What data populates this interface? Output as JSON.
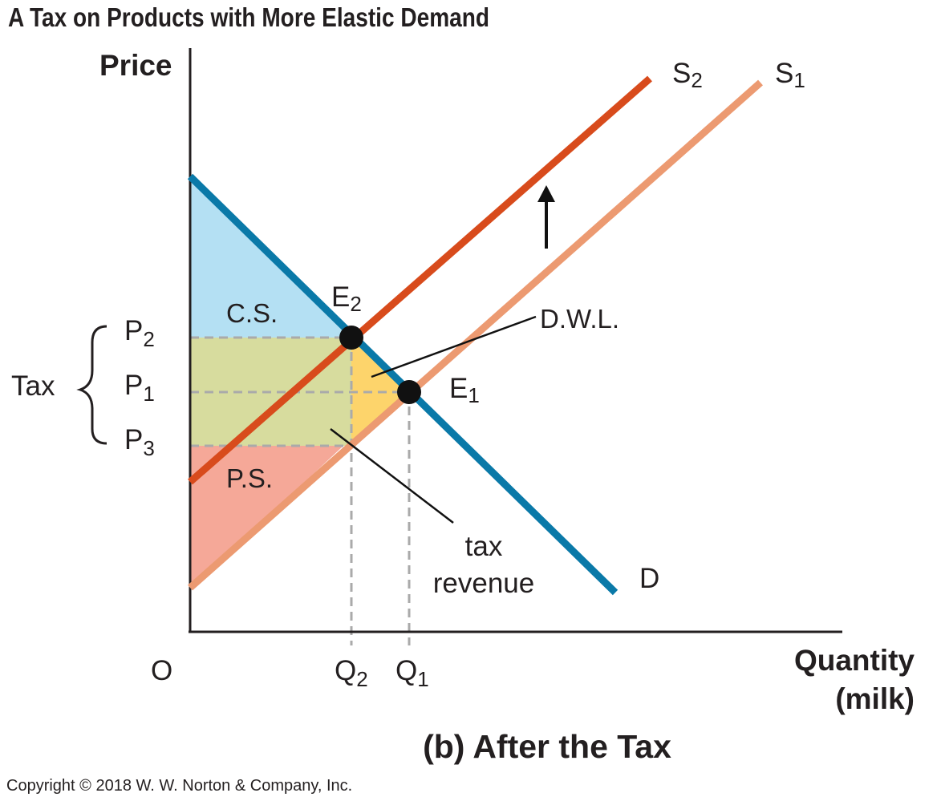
{
  "title": "A Tax on Products with More Elastic Demand",
  "axes": {
    "y_label": "Price",
    "x_label_line1": "Quantity",
    "x_label_line2": "(milk)",
    "origin": "O"
  },
  "curves": {
    "demand": {
      "label": "D",
      "color": "#0a79a8"
    },
    "supply_before": {
      "label_main": "S",
      "label_sub": "1",
      "color": "#ec9a71"
    },
    "supply_after": {
      "label_main": "S",
      "label_sub": "2",
      "color": "#d84b1c"
    }
  },
  "equilibria": {
    "e1": {
      "main": "E",
      "sub": "1"
    },
    "e2": {
      "main": "E",
      "sub": "2"
    }
  },
  "price_labels": [
    {
      "main": "P",
      "sub": "2"
    },
    {
      "main": "P",
      "sub": "1"
    },
    {
      "main": "P",
      "sub": "3"
    }
  ],
  "quantity_labels": [
    {
      "main": "Q",
      "sub": "2"
    },
    {
      "main": "Q",
      "sub": "1"
    }
  ],
  "tax_label": "Tax",
  "areas": {
    "consumer_surplus": {
      "label": "C.S.",
      "color": "#b4e0f3"
    },
    "producer_surplus": {
      "label": "P.S.",
      "color": "#f5a898"
    },
    "tax_revenue": {
      "label_line1": "tax",
      "label_line2": "revenue",
      "color": "#d7dc9e"
    },
    "deadweight_loss": {
      "label": "D.W.L.",
      "color": "#fdd46b"
    }
  },
  "caption": "(b) After the Tax",
  "copyright": "Copyright © 2018 W. W. Norton & Company, Inc."
}
